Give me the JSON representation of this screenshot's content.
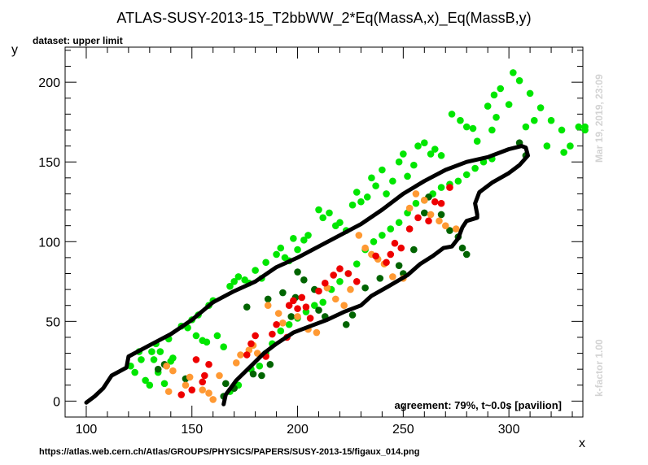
{
  "chart_data": {
    "type": "scatter",
    "title": "ATLAS-SUSY-2013-15_T2bbWW_2*Eq(MassA,x)_Eq(MassB,y)",
    "subtitle": "dataset: upper limit",
    "xlabel": "x",
    "ylabel": "y",
    "xlim": [
      90,
      335
    ],
    "ylim": [
      -10,
      222
    ],
    "x_ticks": [
      100,
      150,
      200,
      250,
      300
    ],
    "y_ticks": [
      0,
      50,
      100,
      150,
      200
    ],
    "agreement_text": "agreement: 79%, t~0.0s [pavilion]",
    "footer_url": "https://atlas.web.cern.ch/Atlas/GROUPS/PHYSICS/PAPERS/SUSY-2013-15/figaux_014.png",
    "timestamp": "Mar 19, 2019, 23:09",
    "kfactor": "k-factor 1.00",
    "colors": {
      "bright_green": "#00e600",
      "dark_green": "#006400",
      "orange": "#ff9933",
      "red": "#ee0000",
      "contour": "#000000"
    },
    "series": [
      {
        "color_key": "bright_green",
        "points": [
          [
            121,
            22
          ],
          [
            123,
            18
          ],
          [
            125,
            31
          ],
          [
            126,
            26
          ],
          [
            128,
            13
          ],
          [
            130,
            10
          ],
          [
            131,
            31
          ],
          [
            132,
            26
          ],
          [
            133,
            36
          ],
          [
            134,
            18
          ],
          [
            135,
            31
          ],
          [
            137,
            11
          ],
          [
            139,
            39
          ],
          [
            140,
            25
          ],
          [
            141,
            27
          ],
          [
            138,
            22
          ],
          [
            145,
            47
          ],
          [
            148,
            46
          ],
          [
            150,
            51
          ],
          [
            152,
            41
          ],
          [
            153,
            54
          ],
          [
            155,
            38
          ],
          [
            157,
            37
          ],
          [
            158,
            60
          ],
          [
            160,
            63
          ],
          [
            162,
            41
          ],
          [
            165,
            34
          ],
          [
            168,
            72
          ],
          [
            170,
            75
          ],
          [
            172,
            78
          ],
          [
            175,
            76
          ],
          [
            177,
            74
          ],
          [
            180,
            82
          ],
          [
            183,
            77
          ],
          [
            185,
            87
          ],
          [
            190,
            92
          ],
          [
            192,
            96
          ],
          [
            194,
            90
          ],
          [
            196,
            88
          ],
          [
            198,
            102
          ],
          [
            200,
            95
          ],
          [
            203,
            101
          ],
          [
            205,
            104
          ],
          [
            210,
            120
          ],
          [
            212,
            115
          ],
          [
            215,
            118
          ],
          [
            218,
            110
          ],
          [
            220,
            112
          ],
          [
            223,
            107
          ],
          [
            226,
            123
          ],
          [
            228,
            131
          ],
          [
            230,
            125
          ],
          [
            233,
            128
          ],
          [
            235,
            140
          ],
          [
            237,
            135
          ],
          [
            240,
            145
          ],
          [
            242,
            130
          ],
          [
            245,
            138
          ],
          [
            248,
            150
          ],
          [
            250,
            155
          ],
          [
            252,
            141
          ],
          [
            255,
            148
          ],
          [
            257,
            160
          ],
          [
            260,
            162
          ],
          [
            263,
            155
          ],
          [
            265,
            158
          ],
          [
            268,
            154
          ],
          [
            273,
            180
          ],
          [
            277,
            176
          ],
          [
            280,
            172
          ],
          [
            283,
            171
          ],
          [
            285,
            163
          ],
          [
            290,
            185
          ],
          [
            293,
            192
          ],
          [
            296,
            196
          ],
          [
            300,
            186
          ],
          [
            305,
            201
          ],
          [
            310,
            193
          ],
          [
            315,
            184
          ],
          [
            320,
            176
          ],
          [
            325,
            170
          ],
          [
            292,
            170
          ],
          [
            294,
            178
          ],
          [
            302,
            206
          ],
          [
            308,
            172
          ],
          [
            312,
            176
          ],
          [
            318,
            160
          ],
          [
            326,
            156
          ],
          [
            329,
            160
          ],
          [
            333,
            172
          ],
          [
            336,
            172
          ],
          [
            336,
            170
          ],
          [
            168,
            6
          ],
          [
            172,
            10
          ],
          [
            178,
            20
          ],
          [
            182,
            22
          ],
          [
            185,
            30
          ],
          [
            188,
            36
          ],
          [
            192,
            44
          ],
          [
            196,
            48
          ],
          [
            200,
            52
          ],
          [
            204,
            56
          ],
          [
            208,
            60
          ],
          [
            212,
            62
          ],
          [
            216,
            70
          ],
          [
            220,
            75
          ],
          [
            224,
            80
          ],
          [
            228,
            86
          ],
          [
            232,
            95
          ],
          [
            236,
            100
          ],
          [
            240,
            104
          ],
          [
            244,
            108
          ],
          [
            248,
            112
          ],
          [
            252,
            118
          ],
          [
            256,
            124
          ],
          [
            260,
            126
          ],
          [
            264,
            130
          ],
          [
            268,
            134
          ],
          [
            272,
            136
          ],
          [
            276,
            138
          ],
          [
            280,
            142
          ],
          [
            284,
            146
          ],
          [
            288,
            150
          ],
          [
            292,
            152
          ]
        ]
      },
      {
        "color_key": "dark_green",
        "points": [
          [
            134,
            20
          ],
          [
            137,
            23
          ],
          [
            147,
            14
          ],
          [
            165,
            3
          ],
          [
            170,
            8
          ],
          [
            179,
            17
          ],
          [
            183,
            16
          ],
          [
            187,
            23
          ],
          [
            193,
            68
          ],
          [
            199,
            65
          ],
          [
            200,
            81
          ],
          [
            203,
            76
          ],
          [
            208,
            70
          ],
          [
            210,
            57
          ],
          [
            213,
            53
          ],
          [
            232,
            71
          ],
          [
            248,
            85
          ],
          [
            250,
            80
          ],
          [
            260,
            118
          ],
          [
            262,
            128
          ],
          [
            268,
            117
          ],
          [
            272,
            107
          ],
          [
            276,
            103
          ],
          [
            278,
            96
          ],
          [
            280,
            92
          ],
          [
            305,
            162
          ],
          [
            308,
            154
          ],
          [
            166,
            11
          ],
          [
            176,
            59
          ],
          [
            186,
            64
          ],
          [
            197,
            53
          ],
          [
            223,
            48
          ],
          [
            226,
            54
          ],
          [
            239,
            77
          ],
          [
            255,
            95
          ]
        ]
      },
      {
        "color_key": "orange",
        "points": [
          [
            138,
            22
          ],
          [
            139,
            6
          ],
          [
            141,
            19
          ],
          [
            147,
            10
          ],
          [
            149,
            15
          ],
          [
            155,
            7
          ],
          [
            158,
            5
          ],
          [
            160,
            1
          ],
          [
            163,
            16
          ],
          [
            171,
            24
          ],
          [
            173,
            29
          ],
          [
            177,
            32
          ],
          [
            179,
            35
          ],
          [
            181,
            30
          ],
          [
            186,
            60
          ],
          [
            191,
            55
          ],
          [
            193,
            49
          ],
          [
            200,
            53
          ],
          [
            205,
            45
          ],
          [
            209,
            43
          ],
          [
            214,
            71
          ],
          [
            218,
            64
          ],
          [
            222,
            60
          ],
          [
            225,
            70
          ],
          [
            229,
            104
          ],
          [
            232,
            96
          ],
          [
            235,
            92
          ],
          [
            238,
            89
          ],
          [
            241,
            86
          ],
          [
            245,
            78
          ],
          [
            250,
            77
          ],
          [
            253,
            121
          ],
          [
            256,
            130
          ],
          [
            260,
            126
          ],
          [
            263,
            117
          ],
          [
            267,
            113
          ],
          [
            270,
            110
          ],
          [
            275,
            108
          ]
        ]
      },
      {
        "color_key": "red",
        "points": [
          [
            152,
            26
          ],
          [
            155,
            12
          ],
          [
            156,
            16
          ],
          [
            158,
            23
          ],
          [
            150,
            7
          ],
          [
            145,
            4
          ],
          [
            176,
            29
          ],
          [
            178,
            36
          ],
          [
            180,
            41
          ],
          [
            185,
            28
          ],
          [
            188,
            42
          ],
          [
            190,
            48
          ],
          [
            195,
            40
          ],
          [
            196,
            60
          ],
          [
            198,
            63
          ],
          [
            200,
            58
          ],
          [
            202,
            65
          ],
          [
            204,
            59
          ],
          [
            206,
            52
          ],
          [
            210,
            69
          ],
          [
            213,
            74
          ],
          [
            217,
            79
          ],
          [
            220,
            83
          ],
          [
            224,
            80
          ],
          [
            228,
            75
          ],
          [
            237,
            91
          ],
          [
            242,
            87
          ],
          [
            244,
            92
          ],
          [
            246,
            99
          ],
          [
            249,
            96
          ],
          [
            253,
            108
          ],
          [
            257,
            115
          ],
          [
            262,
            113
          ],
          [
            265,
            125
          ],
          [
            268,
            124
          ],
          [
            272,
            134
          ]
        ]
      }
    ],
    "contour": [
      [
        100,
        -1
      ],
      [
        104,
        3
      ],
      [
        108,
        8
      ],
      [
        112,
        16
      ],
      [
        119,
        21
      ],
      [
        120,
        28
      ],
      [
        130,
        35
      ],
      [
        140,
        42
      ],
      [
        150,
        51
      ],
      [
        160,
        62
      ],
      [
        170,
        69
      ],
      [
        180,
        75
      ],
      [
        190,
        84
      ],
      [
        200,
        90
      ],
      [
        210,
        97
      ],
      [
        220,
        104
      ],
      [
        230,
        111
      ],
      [
        240,
        120
      ],
      [
        250,
        130
      ],
      [
        260,
        138
      ],
      [
        270,
        145
      ],
      [
        280,
        150
      ],
      [
        290,
        153
      ],
      [
        300,
        158
      ],
      [
        306,
        160
      ],
      [
        308,
        159
      ],
      [
        309,
        154
      ],
      [
        305,
        148
      ],
      [
        300,
        143
      ],
      [
        292,
        137
      ],
      [
        286,
        131
      ],
      [
        284,
        124
      ],
      [
        285,
        117
      ],
      [
        285,
        115
      ],
      [
        280,
        113
      ],
      [
        278,
        109
      ],
      [
        276,
        102
      ],
      [
        273,
        97
      ],
      [
        269,
        96
      ],
      [
        264,
        91
      ],
      [
        258,
        86
      ],
      [
        252,
        79
      ],
      [
        243,
        72
      ],
      [
        235,
        66
      ],
      [
        230,
        60
      ],
      [
        222,
        56
      ],
      [
        214,
        51
      ],
      [
        206,
        47
      ],
      [
        198,
        43
      ],
      [
        190,
        36
      ],
      [
        184,
        30
      ],
      [
        178,
        22
      ],
      [
        171,
        13
      ],
      [
        166,
        4
      ],
      [
        165,
        -2
      ]
    ]
  }
}
